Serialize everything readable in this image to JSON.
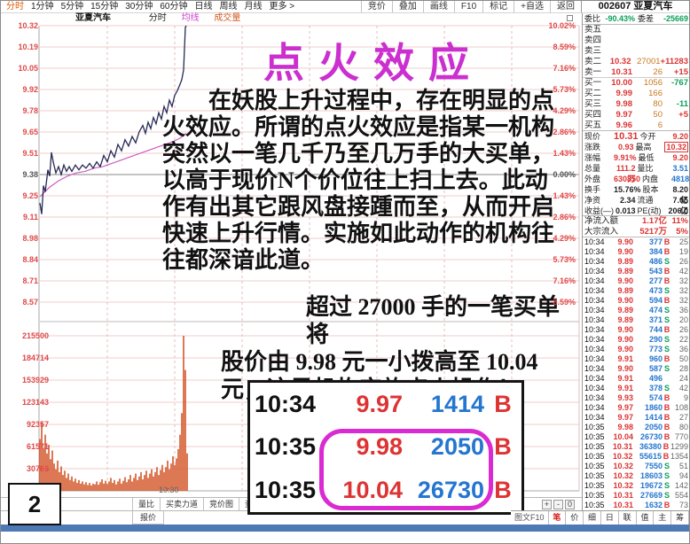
{
  "colors": {
    "up": "#dd3333",
    "down": "#0aa05a",
    "volume_orange": "#c8781e",
    "blue": "#2476cf",
    "magenta": "#cb2fd0",
    "price_line": "#262a55",
    "avg_line": "#d05cc0",
    "volume_bar": "#d4572a",
    "active_period": "#e05a00",
    "bottom_strip": "#4d79b5"
  },
  "toolbar": {
    "periods": [
      "分时",
      "1分钟",
      "5分钟",
      "15分钟",
      "30分钟",
      "60分钟",
      "日线",
      "周线",
      "月线",
      "更多 >"
    ],
    "active_period": "分时",
    "buttons": [
      "竞价",
      "叠加",
      "画线",
      "F10",
      "标记",
      "+自选",
      "返回"
    ],
    "stock_code": "002607",
    "stock_name": "亚夏汽车"
  },
  "chart": {
    "header": {
      "name": "亚夏汽车",
      "sub": "分时",
      "ma": "均线",
      "vol": "成交量"
    },
    "price_axis": [
      {
        "price": "10.32",
        "pct": "10.02%",
        "baseline": false
      },
      {
        "price": "10.19",
        "pct": "8.59%",
        "baseline": false
      },
      {
        "price": "10.05",
        "pct": "7.16%",
        "baseline": false
      },
      {
        "price": "9.92",
        "pct": "5.73%",
        "baseline": false
      },
      {
        "price": "9.78",
        "pct": "4.29%",
        "baseline": false
      },
      {
        "price": "9.65",
        "pct": "2.86%",
        "baseline": false
      },
      {
        "price": "9.51",
        "pct": "1.43%",
        "baseline": false
      },
      {
        "price": "9.38",
        "pct": "0.00%",
        "baseline": true
      },
      {
        "price": "9.25",
        "pct": "1.43%",
        "baseline": false
      },
      {
        "price": "9.11",
        "pct": "2.86%",
        "baseline": false
      },
      {
        "price": "8.98",
        "pct": "4.29%",
        "baseline": false
      },
      {
        "price": "8.84",
        "pct": "5.73%",
        "baseline": false
      },
      {
        "price": "8.71",
        "pct": "7.16%",
        "baseline": false
      },
      {
        "price": "8.57",
        "pct": "8.59%",
        "baseline": false
      }
    ],
    "volume_axis": [
      "215500",
      "184714",
      "153929",
      "123143",
      "92357",
      "61571",
      "30786"
    ],
    "time_label": "10:30",
    "tabs": [
      "量比",
      "买卖力道",
      "竞价图",
      "资金驱动力",
      "资金博弈"
    ],
    "sub_tab": "报价",
    "zoom_controls": [
      "+",
      "-",
      "0"
    ],
    "chart_data": {
      "type": "line",
      "title": "亚夏汽车 分时走势",
      "prev_close": 9.38,
      "ylim": [
        8.44,
        10.32
      ],
      "volume_max": 215500,
      "price_points": [
        [
          44,
          9.2
        ],
        [
          46,
          9.13
        ],
        [
          48,
          9.31
        ],
        [
          50,
          9.27
        ],
        [
          53,
          9.41
        ],
        [
          55,
          9.37
        ],
        [
          57,
          9.52
        ],
        [
          59,
          9.46
        ],
        [
          62,
          9.39
        ],
        [
          65,
          9.43
        ],
        [
          68,
          9.38
        ],
        [
          71,
          9.44
        ],
        [
          74,
          9.4
        ],
        [
          77,
          9.43
        ],
        [
          80,
          9.4
        ],
        [
          84,
          9.44
        ],
        [
          88,
          9.41
        ],
        [
          92,
          9.44
        ],
        [
          96,
          9.42
        ],
        [
          100,
          9.45
        ],
        [
          104,
          9.42
        ],
        [
          108,
          9.46
        ],
        [
          112,
          9.43
        ],
        [
          116,
          9.5
        ],
        [
          120,
          9.46
        ],
        [
          124,
          9.53
        ],
        [
          128,
          9.49
        ],
        [
          132,
          9.57
        ],
        [
          136,
          9.53
        ],
        [
          140,
          9.6
        ],
        [
          144,
          9.56
        ],
        [
          148,
          9.62
        ],
        [
          152,
          9.58
        ],
        [
          156,
          9.65
        ],
        [
          160,
          9.69
        ],
        [
          163,
          9.64
        ],
        [
          166,
          9.71
        ],
        [
          169,
          9.67
        ],
        [
          172,
          9.74
        ],
        [
          175,
          9.7
        ],
        [
          178,
          9.77
        ],
        [
          181,
          9.73
        ],
        [
          184,
          9.81
        ],
        [
          187,
          9.77
        ],
        [
          190,
          9.85
        ],
        [
          193,
          9.81
        ],
        [
          196,
          9.88
        ],
        [
          199,
          9.91
        ],
        [
          202,
          9.95
        ],
        [
          204,
          9.98
        ],
        [
          206,
          10.04
        ],
        [
          208,
          10.31
        ],
        [
          209,
          10.32
        ]
      ],
      "avg_points": [
        [
          44,
          9.24
        ],
        [
          55,
          9.3
        ],
        [
          65,
          9.34
        ],
        [
          75,
          9.37
        ],
        [
          85,
          9.39
        ],
        [
          95,
          9.4
        ],
        [
          105,
          9.42
        ],
        [
          115,
          9.43
        ],
        [
          125,
          9.45
        ],
        [
          135,
          9.47
        ],
        [
          145,
          9.49
        ],
        [
          155,
          9.51
        ],
        [
          165,
          9.53
        ],
        [
          175,
          9.55
        ],
        [
          185,
          9.57
        ],
        [
          195,
          9.59
        ],
        [
          202,
          9.61
        ],
        [
          209,
          9.64
        ]
      ],
      "volume_bars": [
        [
          44,
          72000
        ],
        [
          46,
          95000
        ],
        [
          48,
          60000
        ],
        [
          50,
          78000
        ],
        [
          52,
          52000
        ],
        [
          54,
          64000
        ],
        [
          56,
          44000
        ],
        [
          58,
          56000
        ],
        [
          60,
          38000
        ],
        [
          62,
          30000
        ],
        [
          64,
          42000
        ],
        [
          66,
          26000
        ],
        [
          68,
          34000
        ],
        [
          70,
          22000
        ],
        [
          72,
          28000
        ],
        [
          74,
          18000
        ],
        [
          76,
          24000
        ],
        [
          78,
          15000
        ],
        [
          80,
          20000
        ],
        [
          82,
          13000
        ],
        [
          84,
          17000
        ],
        [
          86,
          11000
        ],
        [
          88,
          15000
        ],
        [
          90,
          10000
        ],
        [
          92,
          13000
        ],
        [
          94,
          9000
        ],
        [
          96,
          12000
        ],
        [
          98,
          8000
        ],
        [
          100,
          11000
        ],
        [
          102,
          7500
        ],
        [
          104,
          10000
        ],
        [
          106,
          9000
        ],
        [
          108,
          13000
        ],
        [
          110,
          8500
        ],
        [
          112,
          12000
        ],
        [
          114,
          16000
        ],
        [
          116,
          10000
        ],
        [
          118,
          14000
        ],
        [
          120,
          9500
        ],
        [
          122,
          13000
        ],
        [
          124,
          18000
        ],
        [
          126,
          11000
        ],
        [
          128,
          15000
        ],
        [
          130,
          9000
        ],
        [
          132,
          13000
        ],
        [
          134,
          17000
        ],
        [
          136,
          10000
        ],
        [
          138,
          14000
        ],
        [
          140,
          19000
        ],
        [
          142,
          12000
        ],
        [
          144,
          16000
        ],
        [
          146,
          22000
        ],
        [
          148,
          13000
        ],
        [
          150,
          18000
        ],
        [
          152,
          24000
        ],
        [
          154,
          15000
        ],
        [
          156,
          20000
        ],
        [
          158,
          26000
        ],
        [
          160,
          16000
        ],
        [
          162,
          22000
        ],
        [
          164,
          28000
        ],
        [
          166,
          18000
        ],
        [
          168,
          24000
        ],
        [
          170,
          30000
        ],
        [
          172,
          20000
        ],
        [
          174,
          26000
        ],
        [
          176,
          33000
        ],
        [
          178,
          22000
        ],
        [
          180,
          29000
        ],
        [
          182,
          36000
        ],
        [
          184,
          26000
        ],
        [
          186,
          33000
        ],
        [
          188,
          42000
        ],
        [
          190,
          30000
        ],
        [
          192,
          38000
        ],
        [
          194,
          48000
        ],
        [
          196,
          36000
        ],
        [
          198,
          45000
        ],
        [
          200,
          58000
        ],
        [
          202,
          78000
        ],
        [
          204,
          108000
        ],
        [
          206,
          215500
        ],
        [
          208,
          168000
        ],
        [
          210,
          52000
        ]
      ]
    }
  },
  "overlay": {
    "title": "点火效应",
    "paragraph1": "在妖股上升过程中，存在明显的点火效应。所谓的点火效应是指某一机构突然以一笔几千乃至几万手的大买单，以高于现价N个价位往上扫上去。此动作有出其它跟风盘接踵而至，从而开启快速上升行情。实施如此动作的机构往往都深谙此道。",
    "paragraph2_lines": [
      "超过 27000 手的一笔买单将",
      "股价由 9.98 元一小拨高至 10.04",
      "元，这是机构实施点火操作！"
    ],
    "inset_table": [
      {
        "time": "10:34",
        "price": "9.97",
        "volume": "1414",
        "flag": "B"
      },
      {
        "time": "10:35",
        "price": "9.98",
        "volume": "2050",
        "flag": "B"
      },
      {
        "time": "10:35",
        "price": "10.04",
        "volume": "26730",
        "flag": "B"
      }
    ]
  },
  "panel": {
    "weibi_label": "委比",
    "weibi_value": "-90.43%",
    "weicha_label": "委差",
    "weicha_value": "-25669",
    "queue": [
      [
        "卖五",
        "",
        "",
        ""
      ],
      [
        "卖四",
        "",
        "",
        ""
      ],
      [
        "卖三",
        "",
        "",
        ""
      ],
      [
        "卖二",
        "10.32",
        "27001",
        "+11283"
      ],
      [
        "卖一",
        "10.31",
        "26",
        "+15"
      ],
      [
        "买一",
        "10.00",
        "1056",
        "-767"
      ],
      [
        "买二",
        "9.99",
        "166",
        ""
      ],
      [
        "买三",
        "9.98",
        "80",
        "-11"
      ],
      [
        "买四",
        "9.97",
        "50",
        "+5"
      ],
      [
        "买五",
        "9.96",
        "6",
        ""
      ]
    ],
    "info": [
      {
        "l1": "现价",
        "v1": "10.31",
        "c1": "c-up",
        "big1": true,
        "l2": "今开",
        "v2": "9.20",
        "c2": "c-up"
      },
      {
        "l1": "涨跌",
        "v1": "0.93",
        "c1": "c-up",
        "l2": "最高",
        "v2": "10.32",
        "c2": "c-up",
        "boxed2": true
      },
      {
        "l1": "涨幅",
        "v1": "9.91%",
        "c1": "c-up",
        "l2": "最低",
        "v2": "9.20",
        "c2": "c-up"
      },
      {
        "l1": "总量",
        "v1": "111.2万",
        "c1": "c-up",
        "l2": "量比",
        "v2": "3.51",
        "c2": "c-blue"
      },
      {
        "l1": "外盘",
        "v1": "630850",
        "c1": "c-up",
        "l2": "内盘",
        "v2": "481854",
        "c2": "c-blue"
      },
      {
        "l1": "换手",
        "v1": "15.76%",
        "c1": "c-plain",
        "l2": "股本",
        "v2": "8.20亿",
        "c2": "c-plain"
      },
      {
        "l1": "净资",
        "v1": "2.34",
        "c1": "c-plain",
        "l2": "流通",
        "v2": "7.05亿",
        "c2": "c-plain"
      },
      {
        "l1": "收益(—)",
        "v1": "0.013",
        "c1": "c-plain",
        "l2": "PE(动)",
        "v2": "206.0",
        "c2": "c-plain"
      }
    ],
    "flows": [
      {
        "label": "净流入额",
        "value": "1.17亿",
        "pct": "11%"
      },
      {
        "label": "大宗流入",
        "value": "5217万",
        "pct": "5%"
      }
    ],
    "ticks": [
      [
        "10:34",
        "9.90",
        "377",
        "B",
        "25"
      ],
      [
        "10:34",
        "9.90",
        "384",
        "B",
        "19"
      ],
      [
        "10:34",
        "9.89",
        "486",
        "S",
        "26"
      ],
      [
        "10:34",
        "9.89",
        "543",
        "B",
        "42"
      ],
      [
        "10:34",
        "9.90",
        "277",
        "B",
        "32"
      ],
      [
        "10:34",
        "9.89",
        "473",
        "S",
        "32"
      ],
      [
        "10:34",
        "9.90",
        "594",
        "B",
        "32"
      ],
      [
        "10:34",
        "9.89",
        "474",
        "S",
        "36"
      ],
      [
        "10:34",
        "9.89",
        "371",
        "S",
        "20"
      ],
      [
        "10:34",
        "9.90",
        "744",
        "B",
        "26"
      ],
      [
        "10:34",
        "9.90",
        "290",
        "S",
        "22"
      ],
      [
        "10:34",
        "9.90",
        "773",
        "S",
        "36"
      ],
      [
        "10:34",
        "9.91",
        "960",
        "B",
        "50"
      ],
      [
        "10:34",
        "9.90",
        "587",
        "S",
        "28"
      ],
      [
        "10:34",
        "9.91",
        "496",
        "",
        "24"
      ],
      [
        "10:34",
        "9.91",
        "378",
        "S",
        "42"
      ],
      [
        "10:34",
        "9.93",
        "574",
        "B",
        "9"
      ],
      [
        "10:34",
        "9.97",
        "1860",
        "B",
        "108"
      ],
      [
        "10:34",
        "9.97",
        "1414",
        "B",
        "27"
      ],
      [
        "10:35",
        "9.98",
        "2050",
        "B",
        "80"
      ],
      [
        "10:35",
        "10.04",
        "26730",
        "B",
        "770"
      ],
      [
        "10:35",
        "10.31",
        "36380",
        "B",
        "1299"
      ],
      [
        "10:35",
        "10.32",
        "55615",
        "B",
        "1354"
      ],
      [
        "10:35",
        "10.32",
        "7550",
        "S",
        "51"
      ],
      [
        "10:35",
        "10.32",
        "18603",
        "S",
        "94"
      ],
      [
        "10:35",
        "10.32",
        "19672",
        "S",
        "142"
      ],
      [
        "10:35",
        "10.31",
        "27669",
        "S",
        "554"
      ],
      [
        "10:35",
        "10.31",
        "1632",
        "B",
        "73"
      ]
    ],
    "bottom": {
      "f10": "图文F10",
      "tabs": [
        "笔",
        "价",
        "细",
        "日",
        "联",
        "值",
        "主",
        "筹"
      ],
      "active": "笔"
    }
  },
  "page_number": "2"
}
